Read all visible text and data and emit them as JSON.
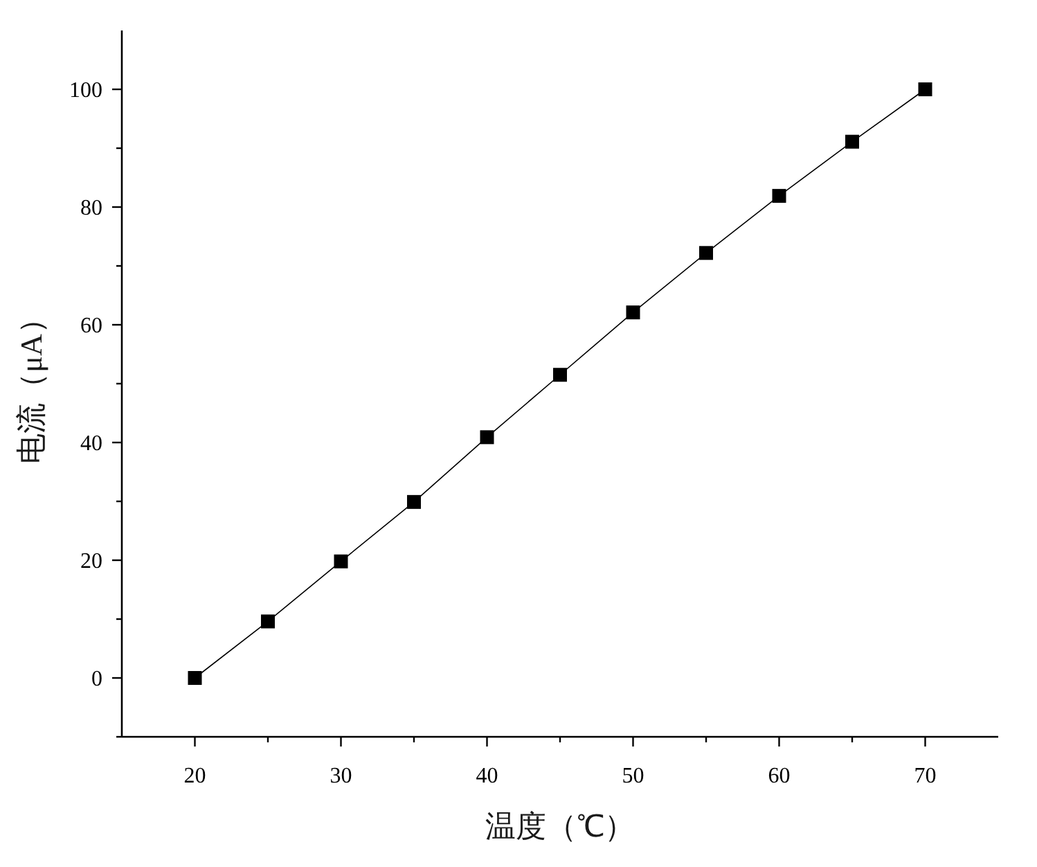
{
  "chart_data": {
    "type": "line",
    "xlabel": "温度（℃）",
    "ylabel": "电流（μA）",
    "x": [
      20,
      25,
      30,
      35,
      40,
      45,
      50,
      55,
      60,
      65,
      70
    ],
    "series": [
      {
        "color": "#000000",
        "values": [
          0,
          9.6,
          19.8,
          29.9,
          40.9,
          51.5,
          62.1,
          72.2,
          81.9,
          91.1,
          100
        ]
      }
    ],
    "xlim": [
      15,
      75
    ],
    "ylim": [
      -10,
      110
    ],
    "xticks": [
      20,
      {
        "value": 25,
        "label": null
      },
      30,
      {
        "value": 35,
        "label": null
      },
      40,
      {
        "value": 45,
        "label": null
      },
      50,
      {
        "value": 55,
        "label": null
      },
      60,
      {
        "value": 65,
        "label": null
      },
      70
    ],
    "yticks": [
      {
        "value": -10,
        "label": null
      },
      0,
      {
        "value": 10,
        "label": null
      },
      20,
      {
        "value": 30,
        "label": null
      },
      40,
      {
        "value": 50,
        "label": null
      },
      60,
      {
        "value": 70,
        "label": null
      },
      80,
      {
        "value": 90,
        "label": null
      },
      100
    ],
    "marker": "square"
  }
}
